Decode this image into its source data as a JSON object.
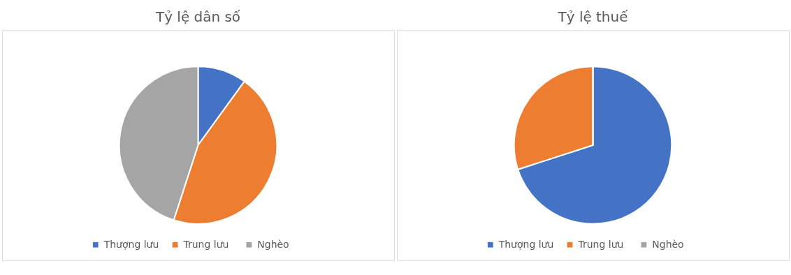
{
  "chart_data": [
    {
      "type": "pie",
      "title": "Tỷ lệ dân số",
      "categories": [
        "Thượng lưu",
        "Trung lưu",
        "Nghèo"
      ],
      "values": [
        10,
        45,
        45
      ],
      "colors": [
        "#4472c4",
        "#ed7d31",
        "#a5a5a5"
      ],
      "legend": "bottom"
    },
    {
      "type": "pie",
      "title": "Tỷ lệ thuế",
      "categories": [
        "Thượng lưu",
        "Trung lưu",
        "Nghèo"
      ],
      "values": [
        70,
        30,
        0
      ],
      "colors": [
        "#4472c4",
        "#ed7d31",
        "#a5a5a5"
      ],
      "legend": "bottom"
    }
  ]
}
